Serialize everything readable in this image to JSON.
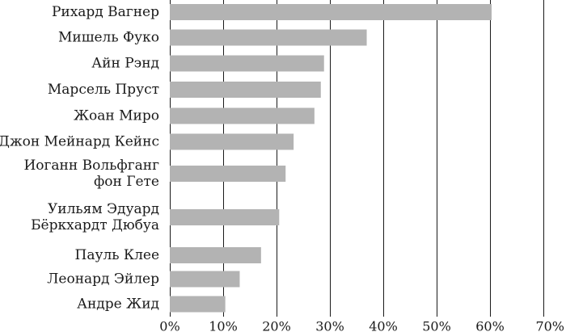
{
  "chart_data": {
    "type": "bar",
    "orientation": "horizontal",
    "categories": [
      [
        "Рихард Вагнер"
      ],
      [
        "Мишель Фуко"
      ],
      [
        "Айн Рэнд"
      ],
      [
        "Марсель Пруст"
      ],
      [
        "Жоан Миро"
      ],
      [
        "Джон Мейнард Кейнс"
      ],
      [
        "Иоганн Вольфганг",
        "фон Гете"
      ],
      [
        "Уильям Эдуард",
        "Бёркхардт Дюбуа"
      ],
      [
        "Пауль Клее"
      ],
      [
        "Леонард Эйлер"
      ],
      [
        "Андре Жид"
      ]
    ],
    "values": [
      60.3,
      36.9,
      28.9,
      28.3,
      27.1,
      23.2,
      21.7,
      20.5,
      17.1,
      13.1,
      10.4
    ],
    "xlim": [
      0,
      70
    ],
    "xticks": [
      0,
      10,
      20,
      30,
      40,
      50,
      60,
      70
    ],
    "xtick_labels": [
      "0%",
      "10%",
      "20%",
      "30%",
      "40%",
      "50%",
      "60%",
      "70%"
    ],
    "grid": "vertical",
    "title": "",
    "xlabel": "",
    "ylabel": "",
    "bar_color": "#b3b3b3"
  }
}
